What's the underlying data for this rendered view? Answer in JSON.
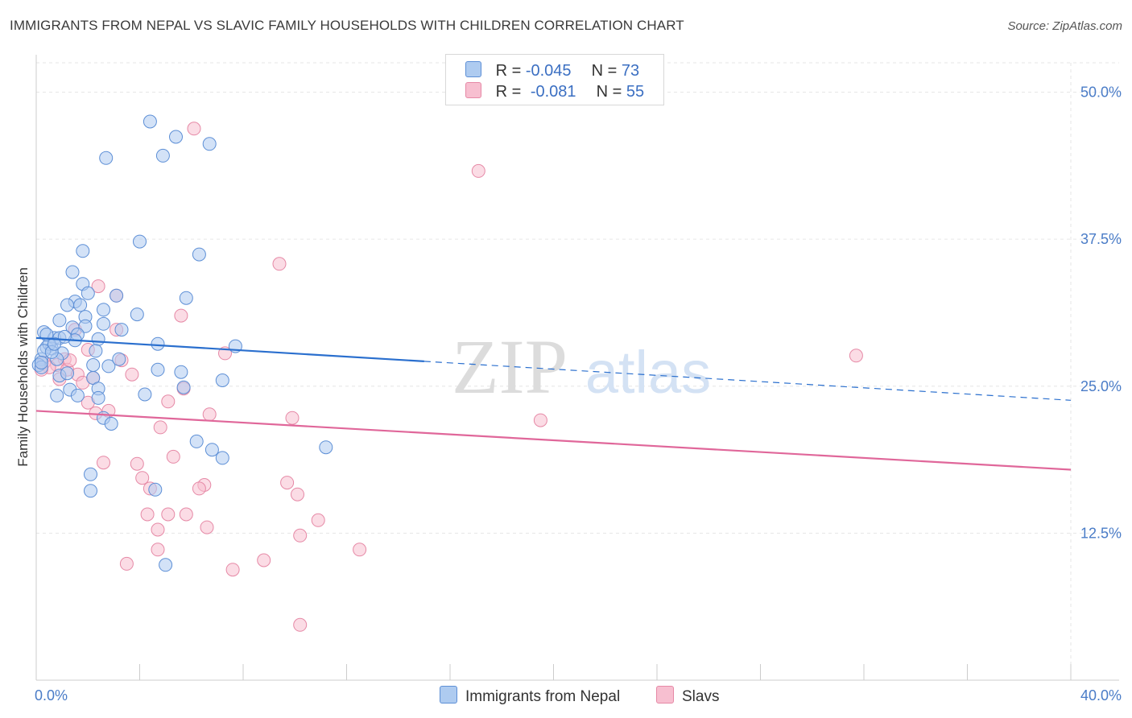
{
  "title": "IMMIGRANTS FROM NEPAL VS SLAVIC FAMILY HOUSEHOLDS WITH CHILDREN CORRELATION CHART",
  "source": "Source: ZipAtlas.com",
  "watermark": {
    "zip": "ZIP",
    "atlas": "atlas"
  },
  "legend": {
    "r_label": "R =",
    "n_label": "N =",
    "rows": [
      {
        "r": "-0.045",
        "n": "73"
      },
      {
        "r": "-0.081",
        "n": "55"
      }
    ]
  },
  "colors": {
    "blue_fill": "#aecbf0",
    "blue_stroke": "#5d8fd6",
    "blue_line": "#2a6fce",
    "pink_fill": "#f7bfd0",
    "pink_stroke": "#e689a6",
    "pink_line": "#e0679a",
    "grid": "#e6e6e6",
    "tick_text": "#4a7cc7"
  },
  "chart_data": {
    "type": "scatter",
    "title": "IMMIGRANTS FROM NEPAL VS SLAVIC FAMILY HOUSEHOLDS WITH CHILDREN CORRELATION CHART",
    "xlabel": "",
    "ylabel": "Family Households with Children",
    "xlim": [
      0,
      40
    ],
    "ylim": [
      0,
      52.5
    ],
    "x_tick_labels": [
      "0.0%",
      "40.0%"
    ],
    "y_ticks": [
      12.5,
      25.0,
      37.5,
      50.0
    ],
    "y_tick_labels": [
      "12.5%",
      "25.0%",
      "37.5%",
      "50.0%"
    ],
    "grid": true,
    "series": [
      {
        "name": "Immigrants from Nepal",
        "r": -0.045,
        "n": 73,
        "trend": {
          "x": [
            0,
            40
          ],
          "y": [
            29.1,
            23.8
          ],
          "solid_until": 15.0
        },
        "points": [
          [
            4.4,
            47.5
          ],
          [
            5.4,
            46.2
          ],
          [
            6.7,
            45.6
          ],
          [
            2.7,
            44.4
          ],
          [
            4.9,
            44.6
          ],
          [
            4.0,
            37.3
          ],
          [
            6.3,
            36.2
          ],
          [
            1.8,
            36.5
          ],
          [
            1.4,
            34.7
          ],
          [
            1.8,
            33.7
          ],
          [
            3.1,
            32.7
          ],
          [
            2.0,
            32.9
          ],
          [
            1.5,
            32.2
          ],
          [
            5.8,
            32.5
          ],
          [
            1.2,
            31.9
          ],
          [
            1.7,
            31.9
          ],
          [
            2.6,
            31.5
          ],
          [
            3.9,
            31.1
          ],
          [
            1.9,
            30.9
          ],
          [
            2.6,
            30.3
          ],
          [
            0.9,
            30.6
          ],
          [
            1.4,
            30.0
          ],
          [
            1.9,
            30.1
          ],
          [
            0.3,
            29.6
          ],
          [
            0.7,
            29.1
          ],
          [
            0.9,
            29.1
          ],
          [
            1.6,
            29.4
          ],
          [
            2.4,
            29.0
          ],
          [
            1.5,
            28.9
          ],
          [
            0.4,
            28.3
          ],
          [
            0.6,
            28.2
          ],
          [
            1.0,
            27.8
          ],
          [
            0.2,
            27.3
          ],
          [
            0.8,
            27.3
          ],
          [
            4.7,
            28.6
          ],
          [
            7.7,
            28.4
          ],
          [
            0.1,
            26.8
          ],
          [
            0.2,
            26.6
          ],
          [
            0.9,
            25.9
          ],
          [
            2.2,
            26.8
          ],
          [
            2.8,
            26.7
          ],
          [
            3.2,
            27.3
          ],
          [
            4.7,
            26.4
          ],
          [
            5.6,
            26.2
          ],
          [
            2.2,
            25.7
          ],
          [
            7.2,
            25.5
          ],
          [
            1.3,
            24.7
          ],
          [
            2.4,
            24.8
          ],
          [
            5.7,
            24.9
          ],
          [
            0.8,
            24.2
          ],
          [
            1.6,
            24.2
          ],
          [
            2.4,
            24.0
          ],
          [
            4.2,
            24.3
          ],
          [
            2.6,
            22.3
          ],
          [
            2.9,
            21.8
          ],
          [
            6.2,
            20.3
          ],
          [
            6.8,
            19.6
          ],
          [
            7.2,
            18.9
          ],
          [
            11.2,
            19.8
          ],
          [
            2.1,
            17.5
          ],
          [
            2.1,
            16.1
          ],
          [
            4.6,
            16.2
          ],
          [
            5.0,
            9.8
          ],
          [
            0.5,
            28.6
          ],
          [
            1.1,
            29.2
          ],
          [
            0.3,
            28.0
          ],
          [
            0.6,
            27.9
          ],
          [
            2.3,
            28.0
          ],
          [
            0.2,
            27.0
          ],
          [
            1.2,
            26.1
          ],
          [
            3.3,
            29.8
          ],
          [
            0.4,
            29.4
          ],
          [
            0.7,
            28.6
          ]
        ]
      },
      {
        "name": "Slavs",
        "r": -0.081,
        "n": 55,
        "trend": {
          "x": [
            0,
            40
          ],
          "y": [
            22.9,
            17.9
          ],
          "solid_until": 40.0
        },
        "points": [
          [
            6.1,
            46.9
          ],
          [
            17.1,
            43.3
          ],
          [
            9.4,
            35.4
          ],
          [
            2.4,
            33.5
          ],
          [
            3.1,
            32.7
          ],
          [
            5.6,
            31.0
          ],
          [
            3.1,
            29.8
          ],
          [
            1.5,
            29.8
          ],
          [
            2.0,
            28.1
          ],
          [
            7.3,
            27.8
          ],
          [
            1.1,
            27.3
          ],
          [
            3.3,
            27.2
          ],
          [
            0.3,
            27.0
          ],
          [
            0.8,
            26.8
          ],
          [
            0.5,
            26.6
          ],
          [
            1.2,
            26.4
          ],
          [
            1.6,
            26.0
          ],
          [
            3.7,
            26.0
          ],
          [
            0.9,
            25.6
          ],
          [
            1.8,
            25.3
          ],
          [
            2.2,
            25.7
          ],
          [
            31.7,
            27.6
          ],
          [
            5.7,
            24.8
          ],
          [
            5.1,
            23.7
          ],
          [
            2.0,
            23.6
          ],
          [
            2.8,
            22.9
          ],
          [
            2.3,
            22.7
          ],
          [
            6.7,
            22.6
          ],
          [
            9.9,
            22.3
          ],
          [
            19.5,
            22.1
          ],
          [
            4.8,
            21.5
          ],
          [
            5.3,
            19.0
          ],
          [
            2.6,
            18.5
          ],
          [
            3.9,
            18.4
          ],
          [
            4.1,
            17.2
          ],
          [
            6.5,
            16.6
          ],
          [
            9.7,
            16.8
          ],
          [
            4.4,
            16.3
          ],
          [
            6.3,
            16.3
          ],
          [
            10.1,
            15.8
          ],
          [
            4.3,
            14.1
          ],
          [
            5.1,
            14.1
          ],
          [
            5.8,
            14.1
          ],
          [
            10.9,
            13.6
          ],
          [
            4.7,
            12.8
          ],
          [
            6.6,
            13.0
          ],
          [
            10.2,
            12.3
          ],
          [
            4.7,
            11.1
          ],
          [
            12.5,
            11.1
          ],
          [
            3.5,
            9.9
          ],
          [
            8.8,
            10.2
          ],
          [
            7.6,
            9.4
          ],
          [
            10.2,
            4.7
          ],
          [
            0.2,
            26.4
          ],
          [
            1.3,
            27.2
          ]
        ]
      }
    ]
  },
  "bottom_legend": [
    "Immigrants from Nepal",
    "Slavs"
  ]
}
